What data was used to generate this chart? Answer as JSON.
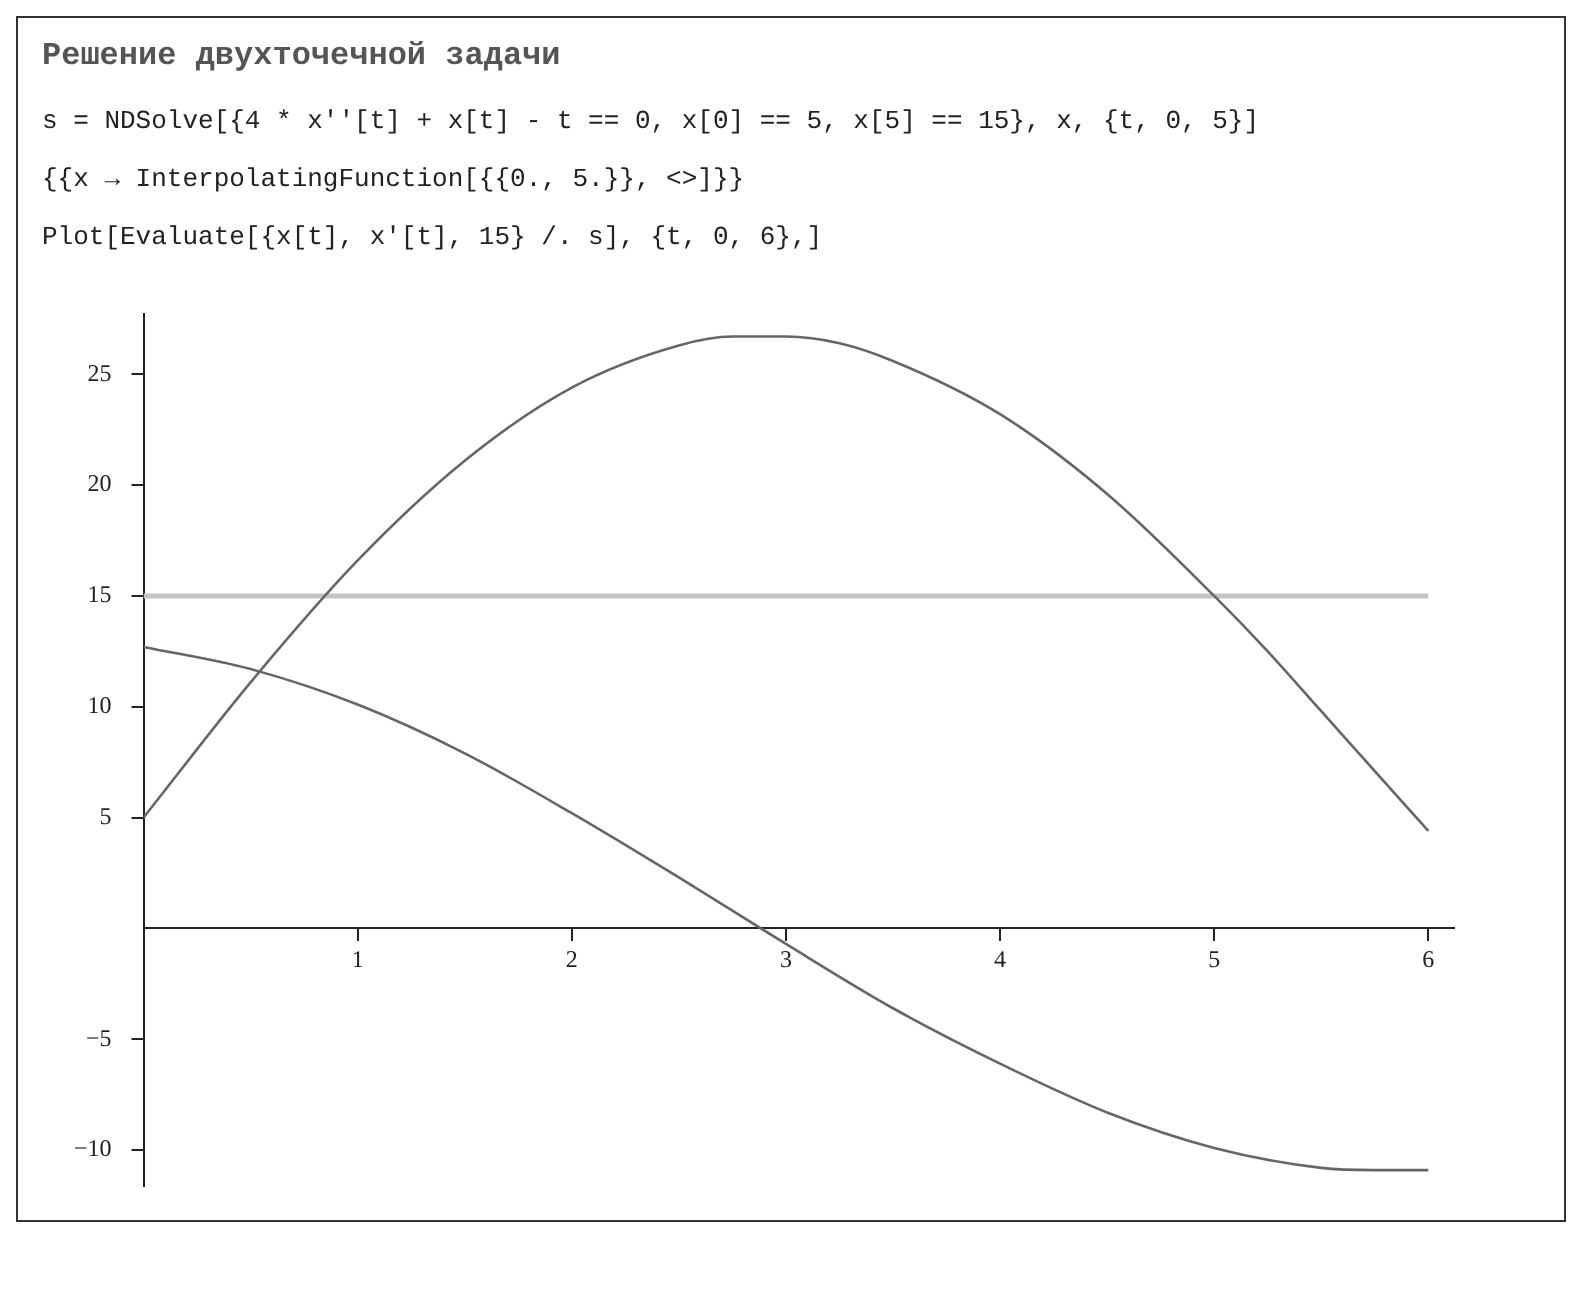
{
  "chart_data": {
    "type": "line",
    "title": "Решение двухточечной задачи",
    "annotations": [
      "s = NDSolve[{4 * x''[t] + x[t] - t == 0, x[0] == 5, x[5] == 15}, x, {t, 0, 5}]",
      "{{x → InterpolatingFunction[{{0., 5.}}, <>]}}",
      "Plot[Evaluate[{x[t], x'[t], 15} /. s], {t, 0, 6},]"
    ],
    "series": [
      {
        "color": "#666666",
        "x": [
          0,
          0.5,
          1,
          1.5,
          2,
          2.5,
          2.75,
          3,
          3.25,
          3.5,
          4,
          4.5,
          5,
          5.25,
          5.5,
          5.75,
          6
        ],
        "values": [
          5,
          11.1,
          16.6,
          21.1,
          24.4,
          26.3,
          26.7,
          26.7,
          26.4,
          25.6,
          23.2,
          19.6,
          15,
          12.5,
          9.8,
          7.1,
          4.4
        ]
      },
      {
        "color": "#666666",
        "x": [
          0,
          0.5,
          1,
          1.5,
          2,
          2.5,
          3,
          3.5,
          4,
          4.5,
          5,
          5.5,
          5.75,
          6
        ],
        "values": [
          12.7,
          11.7,
          10.1,
          7.9,
          5.2,
          2.3,
          -0.7,
          -3.6,
          -6.1,
          -8.3,
          -9.9,
          -10.8,
          -10.9,
          -10.9
        ]
      },
      {
        "color": "#c4c4c4",
        "x": [
          0,
          6
        ],
        "values": [
          15,
          15
        ]
      }
    ],
    "xlim": [
      0,
      6.12
    ],
    "ylim": [
      -11.6,
      27.7
    ],
    "xticks": [
      1,
      2,
      3,
      4,
      5,
      6
    ],
    "yticks": [
      -10,
      -5,
      5,
      10,
      15,
      20,
      25
    ],
    "grid": false,
    "legend": false,
    "marker": "none",
    "line_style": "solid"
  }
}
